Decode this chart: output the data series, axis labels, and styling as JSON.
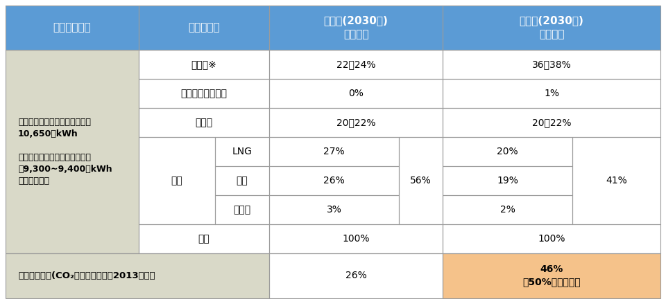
{
  "header_bg": "#5b9bd5",
  "header_text": "#ffffff",
  "left_col_bg": "#d9d9c8",
  "white_bg": "#ffffff",
  "orange_bg": "#f5c28a",
  "border_color": "#888888",
  "light_blue_header": "#bdd7ee",
  "col1_label": "総発電電力量",
  "col2_label": "電源の種別",
  "col3_label": "第５次(2030年)\n電源構成",
  "col4_label": "第６次(2030年)\n電源構成",
  "left_text": "【第５次エネルギー基本計画】\n10,650億kWh\n\n【第６次エネルギー基本計画】\n約9,300~9,400億kWh\n（やや減少）",
  "rows": [
    {
      "source": "再エネ※",
      "sub": "",
      "col3": "22～24%",
      "col4": "36～38%"
    },
    {
      "source": "水素・アンモニア",
      "sub": "",
      "col3": "0%",
      "col4": "1%"
    },
    {
      "source": "原子力",
      "sub": "",
      "col3": "20～22%",
      "col4": "20～22%"
    },
    {
      "source": "火力",
      "sub": "LNG",
      "col3": "27%",
      "col3b": "56%",
      "col4": "20%",
      "col4b": "41%"
    },
    {
      "source": "",
      "sub": "石炭",
      "col3": "26%",
      "col3b": "",
      "col4": "19%",
      "col4b": ""
    },
    {
      "source": "",
      "sub": "石油等",
      "col3": "3%",
      "col3b": "",
      "col4": "2%",
      "col4b": ""
    }
  ],
  "total_row": {
    "label": "合計",
    "col3": "100%",
    "col4": "100%"
  },
  "bottom_row": {
    "label": "温室効果ガス(CO₂）の削減目標：2013年度比",
    "col3": "26%",
    "col4": "46%\n（50%を目指す）",
    "col4_bg": "#f5c28a"
  }
}
